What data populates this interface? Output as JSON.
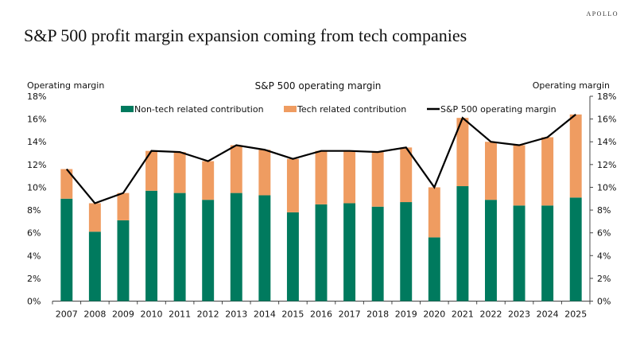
{
  "brand": "APOLLO",
  "title": "S&P 500 profit margin expansion coming from tech companies",
  "chart_data": {
    "type": "bar",
    "stacked": true,
    "title": "S&P 500 operating margin",
    "ylabel_left": "Operating margin",
    "ylabel_right": "Operating margin",
    "ylim": [
      0,
      18
    ],
    "yticks": [
      "0%",
      "2%",
      "4%",
      "6%",
      "8%",
      "10%",
      "12%",
      "14%",
      "16%",
      "18%"
    ],
    "legend_placement": "top",
    "categories": [
      "2007",
      "2008",
      "2009",
      "2010",
      "2011",
      "2012",
      "2013",
      "2014",
      "2015",
      "2016",
      "2017",
      "2018",
      "2019",
      "2020",
      "2021",
      "2022",
      "2023",
      "2024",
      "2025"
    ],
    "series": [
      {
        "name": "Non-tech related contribution",
        "type": "bar",
        "color": "#007a5e",
        "values": [
          9.0,
          6.1,
          7.1,
          9.7,
          9.5,
          8.9,
          9.5,
          9.3,
          7.8,
          8.5,
          8.6,
          8.3,
          8.7,
          5.6,
          10.1,
          8.9,
          8.4,
          8.4,
          9.1
        ]
      },
      {
        "name": "Tech related contribution",
        "type": "bar",
        "color": "#ef9c61",
        "values": [
          2.6,
          2.5,
          2.4,
          3.5,
          3.6,
          3.4,
          4.2,
          4.0,
          4.7,
          4.7,
          4.6,
          4.8,
          4.8,
          4.4,
          6.0,
          5.1,
          5.3,
          6.0,
          7.3
        ]
      },
      {
        "name": "S&P 500 operating margin",
        "type": "line",
        "color": "#000000",
        "values": [
          11.6,
          8.6,
          9.5,
          13.2,
          13.1,
          12.3,
          13.7,
          13.3,
          12.5,
          13.2,
          13.2,
          13.1,
          13.5,
          10.0,
          16.1,
          14.0,
          13.7,
          14.4,
          16.4
        ]
      }
    ]
  }
}
